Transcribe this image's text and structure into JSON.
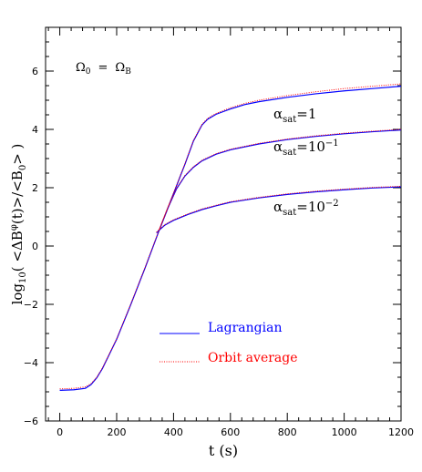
{
  "chart_data": {
    "type": "line",
    "xlabel": "t (s)",
    "ylabel": {
      "prefix": "log",
      "sub": "10",
      "open": "(  <",
      "delta": "Δ",
      "B": "B",
      "sup": "φ",
      "after": "(t)>/<",
      "B0": "B",
      "B0sub": "0",
      "close": ">  )"
    },
    "xlim": [
      -50,
      1200
    ],
    "ylim": [
      -6,
      7.5
    ],
    "xticks": [
      0,
      200,
      400,
      600,
      800,
      1000,
      1200
    ],
    "yticks": [
      -6,
      -4,
      -2,
      0,
      2,
      4,
      6
    ],
    "xtick_labels": [
      "0",
      "200",
      "400",
      "600",
      "800",
      "1000",
      "1200"
    ],
    "ytick_labels": [
      "−6",
      "−4",
      "−2",
      "0",
      "2",
      "4",
      "6"
    ],
    "annotation_omega": {
      "lhs": "Ω",
      "lhs_sub": "0",
      "eq": "=",
      "rhs": "Ω",
      "rhs_sub": "B"
    },
    "curve_labels": [
      {
        "alpha": "α",
        "sub": "sat",
        "value": "=1",
        "exp": ""
      },
      {
        "alpha": "α",
        "sub": "sat",
        "value": "=10",
        "exp": "−1"
      },
      {
        "alpha": "α",
        "sub": "sat",
        "value": "=10",
        "exp": "−2"
      }
    ],
    "legend": {
      "placement": "center",
      "entries": [
        {
          "label": "Lagrangian",
          "color": "#0000ff",
          "style": "solid"
        },
        {
          "label": "Orbit average",
          "color": "#ff0000",
          "style": "dotted"
        }
      ]
    },
    "series": [
      {
        "name": "Lagrangian",
        "color": "#0000ff",
        "curves": [
          {
            "x": [
              0,
              50,
              90,
              110,
              130,
              150,
              175,
              200,
              250,
              300,
              350,
              400,
              440,
              470,
              500,
              520,
              550,
              600,
              650,
              700,
              800,
              900,
              1000,
              1100,
              1200
            ],
            "y": [
              -4.95,
              -4.93,
              -4.88,
              -4.75,
              -4.52,
              -4.2,
              -3.7,
              -3.2,
              -2.0,
              -0.75,
              0.55,
              1.8,
              2.8,
              3.6,
              4.15,
              4.35,
              4.52,
              4.7,
              4.85,
              4.95,
              5.1,
              5.22,
              5.32,
              5.4,
              5.48
            ]
          },
          {
            "x": [
              350,
              380,
              410,
              440,
              470,
              500,
              550,
              600,
              700,
              800,
              900,
              1000,
              1100,
              1200
            ],
            "y": [
              0.55,
              1.3,
              1.95,
              2.4,
              2.7,
              2.92,
              3.15,
              3.3,
              3.5,
              3.65,
              3.76,
              3.85,
              3.92,
              3.98
            ]
          },
          {
            "x": [
              340,
              350,
              370,
              400,
              450,
              500,
              550,
              600,
              700,
              800,
              900,
              1000,
              1100,
              1200
            ],
            "y": [
              0.45,
              0.55,
              0.72,
              0.88,
              1.08,
              1.25,
              1.38,
              1.5,
              1.65,
              1.77,
              1.86,
              1.93,
              1.99,
              2.03
            ]
          }
        ]
      },
      {
        "name": "Orbit average",
        "color": "#ff0000",
        "curves": [
          {
            "x": [
              0,
              50,
              90,
              110,
              130,
              150,
              175,
              200,
              250,
              300,
              350,
              400,
              440,
              470,
              500,
              520,
              550,
              600,
              650,
              700,
              800,
              900,
              1000,
              1100,
              1200
            ],
            "y": [
              -4.9,
              -4.88,
              -4.83,
              -4.72,
              -4.5,
              -4.18,
              -3.68,
              -3.18,
              -1.98,
              -0.73,
              0.57,
              1.82,
              2.82,
              3.62,
              4.17,
              4.38,
              4.55,
              4.74,
              4.89,
              5.0,
              5.16,
              5.29,
              5.4,
              5.48,
              5.56
            ]
          },
          {
            "x": [
              350,
              380,
              410,
              440,
              470,
              500,
              550,
              600,
              700,
              800,
              900,
              1000,
              1100,
              1200
            ],
            "y": [
              0.57,
              1.32,
              1.97,
              2.42,
              2.72,
              2.94,
              3.17,
              3.32,
              3.52,
              3.67,
              3.78,
              3.87,
              3.94,
              4.0
            ]
          },
          {
            "x": [
              340,
              350,
              370,
              400,
              450,
              500,
              550,
              600,
              700,
              800,
              900,
              1000,
              1100,
              1200
            ],
            "y": [
              0.47,
              0.57,
              0.74,
              0.9,
              1.1,
              1.27,
              1.4,
              1.52,
              1.67,
              1.79,
              1.88,
              1.95,
              2.01,
              2.05
            ]
          }
        ]
      }
    ]
  }
}
